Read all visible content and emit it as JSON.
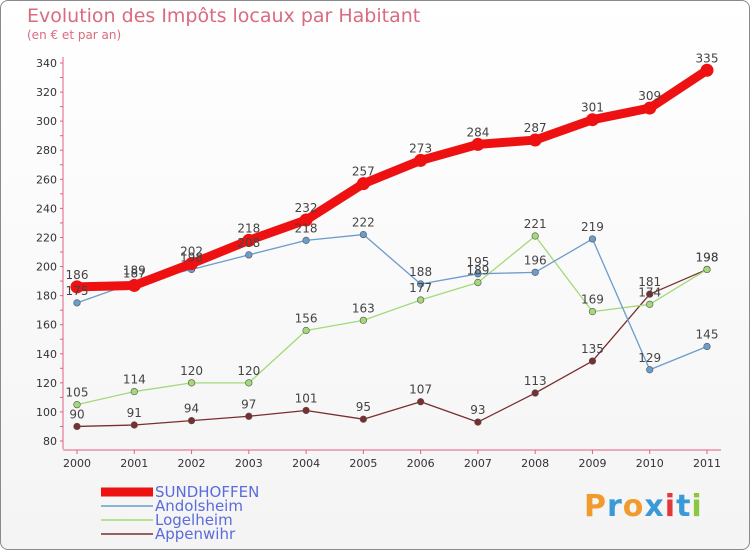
{
  "chart_data": {
    "type": "line",
    "title": "Evolution des Impôts locaux par Habitant",
    "subtitle": "(en € et par an)",
    "x": [
      "2000",
      "2001",
      "2002",
      "2003",
      "2004",
      "2005",
      "2006",
      "2007",
      "2008",
      "2009",
      "2010",
      "2011"
    ],
    "ylim": [
      80,
      340
    ],
    "yticks": [
      80,
      100,
      120,
      140,
      160,
      180,
      200,
      220,
      240,
      260,
      280,
      300,
      320,
      340
    ],
    "grid": false,
    "legend_position": "bottom-left",
    "series": [
      {
        "name": "SUNDHOFFEN",
        "color": "#ee1111",
        "values": [
          186,
          187,
          202,
          218,
          232,
          257,
          273,
          284,
          287,
          301,
          309,
          335
        ]
      },
      {
        "name": "Andolsheim",
        "color": "#6a9ccc",
        "values": [
          175,
          189,
          198,
          208,
          218,
          222,
          188,
          195,
          196,
          219,
          129,
          145
        ]
      },
      {
        "name": "Logelheim",
        "color": "#a3d977",
        "values": [
          105,
          114,
          120,
          120,
          156,
          163,
          177,
          189,
          221,
          169,
          174,
          198
        ]
      },
      {
        "name": "Appenwihr",
        "color": "#7a2e2e",
        "values": [
          90,
          91,
          94,
          97,
          101,
          95,
          107,
          93,
          113,
          135,
          181,
          198
        ]
      }
    ],
    "data_labels": [
      {
        "series": 0,
        "values": [
          "186",
          "187",
          "202",
          "218",
          "232",
          "257",
          "273",
          "284",
          "287",
          "301",
          "309",
          "335"
        ]
      },
      {
        "series": 1,
        "values": [
          "175",
          "189",
          "198",
          "208",
          "218",
          "222",
          "188",
          "195",
          "196",
          "219",
          "129",
          "145"
        ]
      },
      {
        "series": 2,
        "values": [
          "105",
          "114",
          "120",
          "120",
          "156",
          "163",
          "177",
          "189",
          "221",
          "169",
          "174",
          "198"
        ]
      },
      {
        "series": 3,
        "values": [
          "90",
          "91",
          "94",
          "97",
          "101",
          "95",
          "107",
          "93",
          "113",
          "135",
          "181",
          "198"
        ]
      }
    ]
  },
  "logo": {
    "text": "Proxiti",
    "letters": [
      "P",
      "r",
      "o",
      "x",
      "i",
      "t",
      "i"
    ]
  }
}
